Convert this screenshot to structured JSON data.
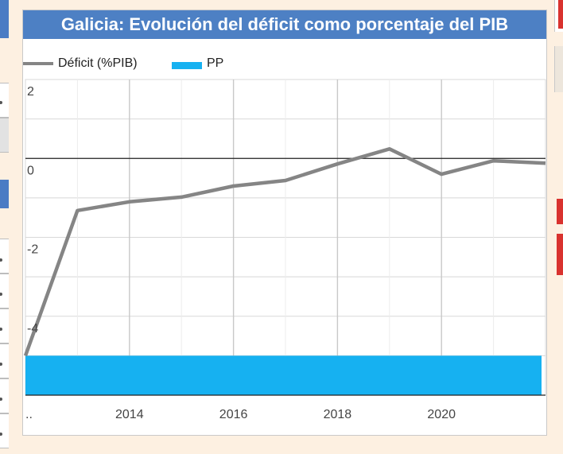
{
  "chart_data": {
    "type": "line",
    "title": "Galicia: Evolución del déficit como porcentaje del PIB",
    "series": [
      {
        "name": "Déficit (%PIB)",
        "color": "#858585",
        "x": [
          2012,
          2013,
          2014,
          2015,
          2016,
          2017,
          2018,
          2019,
          2020,
          2021,
          2022
        ],
        "values": [
          -5.0,
          -1.32,
          -1.1,
          -0.98,
          -0.7,
          -0.56,
          -0.14,
          0.24,
          -0.4,
          -0.06,
          -0.12
        ]
      }
    ],
    "bands": [
      {
        "name": "PP",
        "color": "#16b1f1",
        "from": 2012,
        "to": 2022,
        "y0": -5.0,
        "y1": -6.0
      }
    ],
    "xlim": [
      2012,
      2022
    ],
    "ylim": [
      -6,
      2
    ],
    "x_ticks": [
      {
        "value": 2012,
        "label": ".."
      },
      {
        "value": 2014,
        "label": "2014"
      },
      {
        "value": 2016,
        "label": "2016"
      },
      {
        "value": 2018,
        "label": "2018"
      },
      {
        "value": 2020,
        "label": "2020"
      }
    ],
    "y_ticks": [
      {
        "value": 2,
        "label": "2"
      },
      {
        "value": 0,
        "label": "0"
      },
      {
        "value": -2,
        "label": "-2"
      },
      {
        "value": -4,
        "label": "-4"
      }
    ],
    "grid": true,
    "legend_position": "top-left"
  }
}
